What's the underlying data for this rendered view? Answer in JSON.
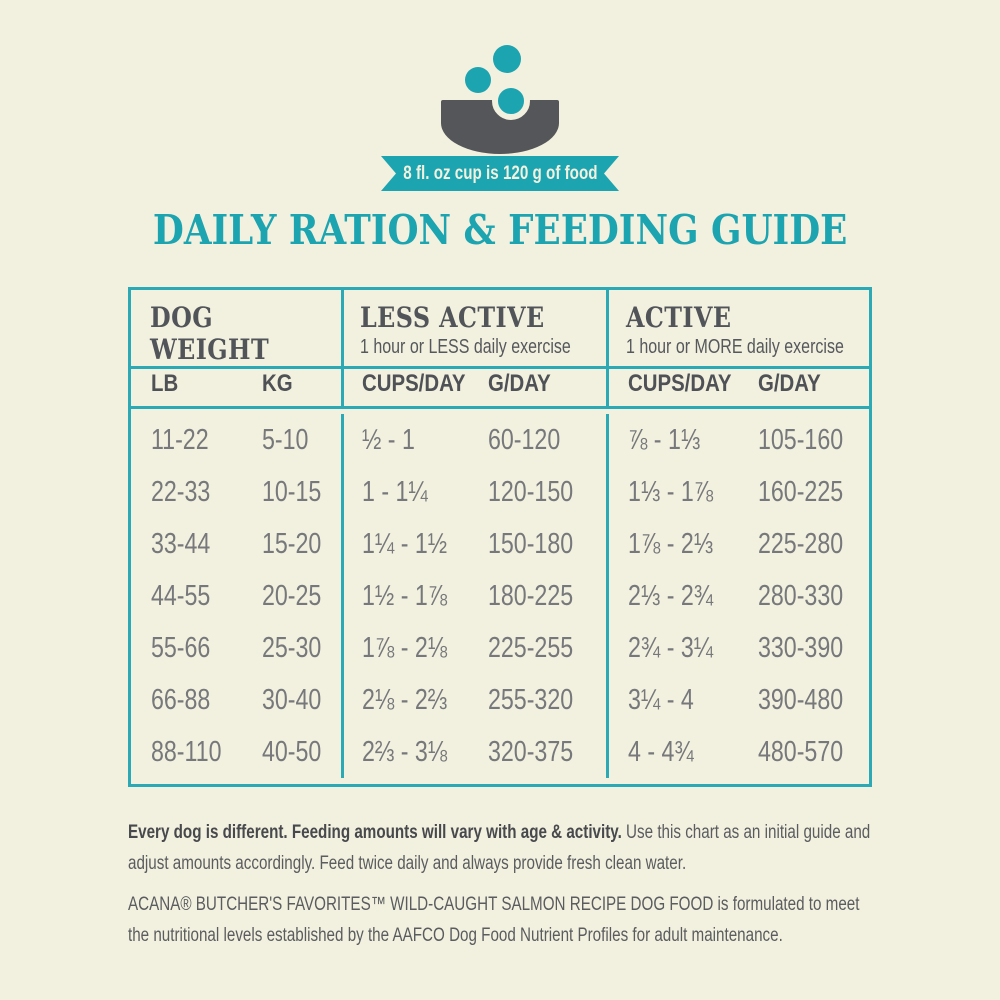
{
  "colors": {
    "background": "#F2F0DE",
    "teal_accent": "#1CA4B1",
    "table_border": "#2BAAB5",
    "bowl_dark": "#54565A",
    "value_gray": "#76787B",
    "heading_gray": "#515459"
  },
  "hero": {
    "cup_note": "8 fl. oz cup is 120 g of food"
  },
  "title": "DAILY RATION & FEEDING GUIDE",
  "chart_data": {
    "type": "table",
    "title": "DAILY RATION & FEEDING GUIDE",
    "unit_note": "8 fl. oz cup is 120 g of food",
    "column_groups": [
      {
        "title": "DOG WEIGHT",
        "subtitle": ""
      },
      {
        "title": "LESS ACTIVE",
        "subtitle": "1 hour or LESS daily exercise"
      },
      {
        "title": "ACTIVE",
        "subtitle": "1 hour or MORE daily exercise"
      }
    ],
    "columns": [
      "LB",
      "KG",
      "CUPS/DAY",
      "G/DAY",
      "CUPS/DAY",
      "G/DAY"
    ],
    "rows": [
      [
        "11-22",
        "5-10",
        "½ - 1",
        "60-120",
        "⅞ - 1⅓",
        "105-160"
      ],
      [
        "22-33",
        "10-15",
        "1 - 1¼",
        "120-150",
        "1⅓ - 1⅞",
        "160-225"
      ],
      [
        "33-44",
        "15-20",
        "1¼ - 1½",
        "150-180",
        "1⅞ - 2⅓",
        "225-280"
      ],
      [
        "44-55",
        "20-25",
        "1½ - 1⅞",
        "180-225",
        "2⅓ - 2¾",
        "280-330"
      ],
      [
        "55-66",
        "25-30",
        "1⅞ - 2⅛",
        "225-255",
        "2¾ - 3¼",
        "330-390"
      ],
      [
        "66-88",
        "30-40",
        "2⅛ - 2⅔",
        "255-320",
        "3¼ - 4",
        "390-480"
      ],
      [
        "88-110",
        "40-50",
        "2⅔ - 3⅛",
        "320-375",
        "4 - 4¾",
        "480-570"
      ]
    ]
  },
  "footnotes": {
    "note1_bold": "Every dog is different. Feeding amounts will vary with age & activity.",
    "note1_rest": " Use this chart as an initial guide and adjust amounts accordingly. Feed twice daily and always provide fresh clean water.",
    "note2": "ACANA® BUTCHER'S FAVORITES™ WILD-CAUGHT SALMON RECIPE DOG FOOD is formulated to meet the nutritional levels established by the AAFCO Dog Food Nutrient Profiles for adult maintenance."
  }
}
